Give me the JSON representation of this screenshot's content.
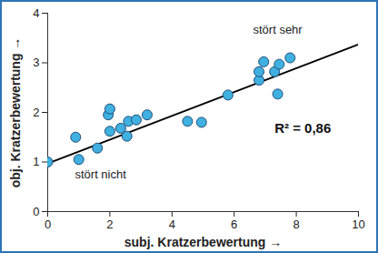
{
  "chart_data": {
    "type": "scatter",
    "x_label": "subj. Kratzerbewertung",
    "y_label": "obj. Kratzerbewertung",
    "x": [
      0,
      0.9,
      1.0,
      1.6,
      1.95,
      2.0,
      2.0,
      2.35,
      2.55,
      2.6,
      2.85,
      3.2,
      4.5,
      4.95,
      5.8,
      6.8,
      6.8,
      6.95,
      7.3,
      7.45,
      7.4,
      7.8
    ],
    "values": [
      1.0,
      1.5,
      1.05,
      1.28,
      1.95,
      2.07,
      1.62,
      1.68,
      1.52,
      1.82,
      1.85,
      1.95,
      1.82,
      1.8,
      2.35,
      2.65,
      2.82,
      3.02,
      2.82,
      2.97,
      2.37,
      3.1
    ],
    "color": "#3fb0e0",
    "marker": "circle",
    "trendline": {
      "x": [
        0,
        10
      ],
      "values": [
        0.97,
        3.37
      ],
      "color": "#000000"
    },
    "annotations": [
      "stört nicht",
      "stört sehr",
      "R² = 0,86"
    ],
    "xlim": [
      0,
      10
    ],
    "xticks": [
      0,
      2,
      4,
      6,
      8,
      10
    ],
    "ylim": [
      0,
      4
    ],
    "yticks": [
      0,
      1,
      2,
      3,
      4
    ],
    "grid": false
  }
}
